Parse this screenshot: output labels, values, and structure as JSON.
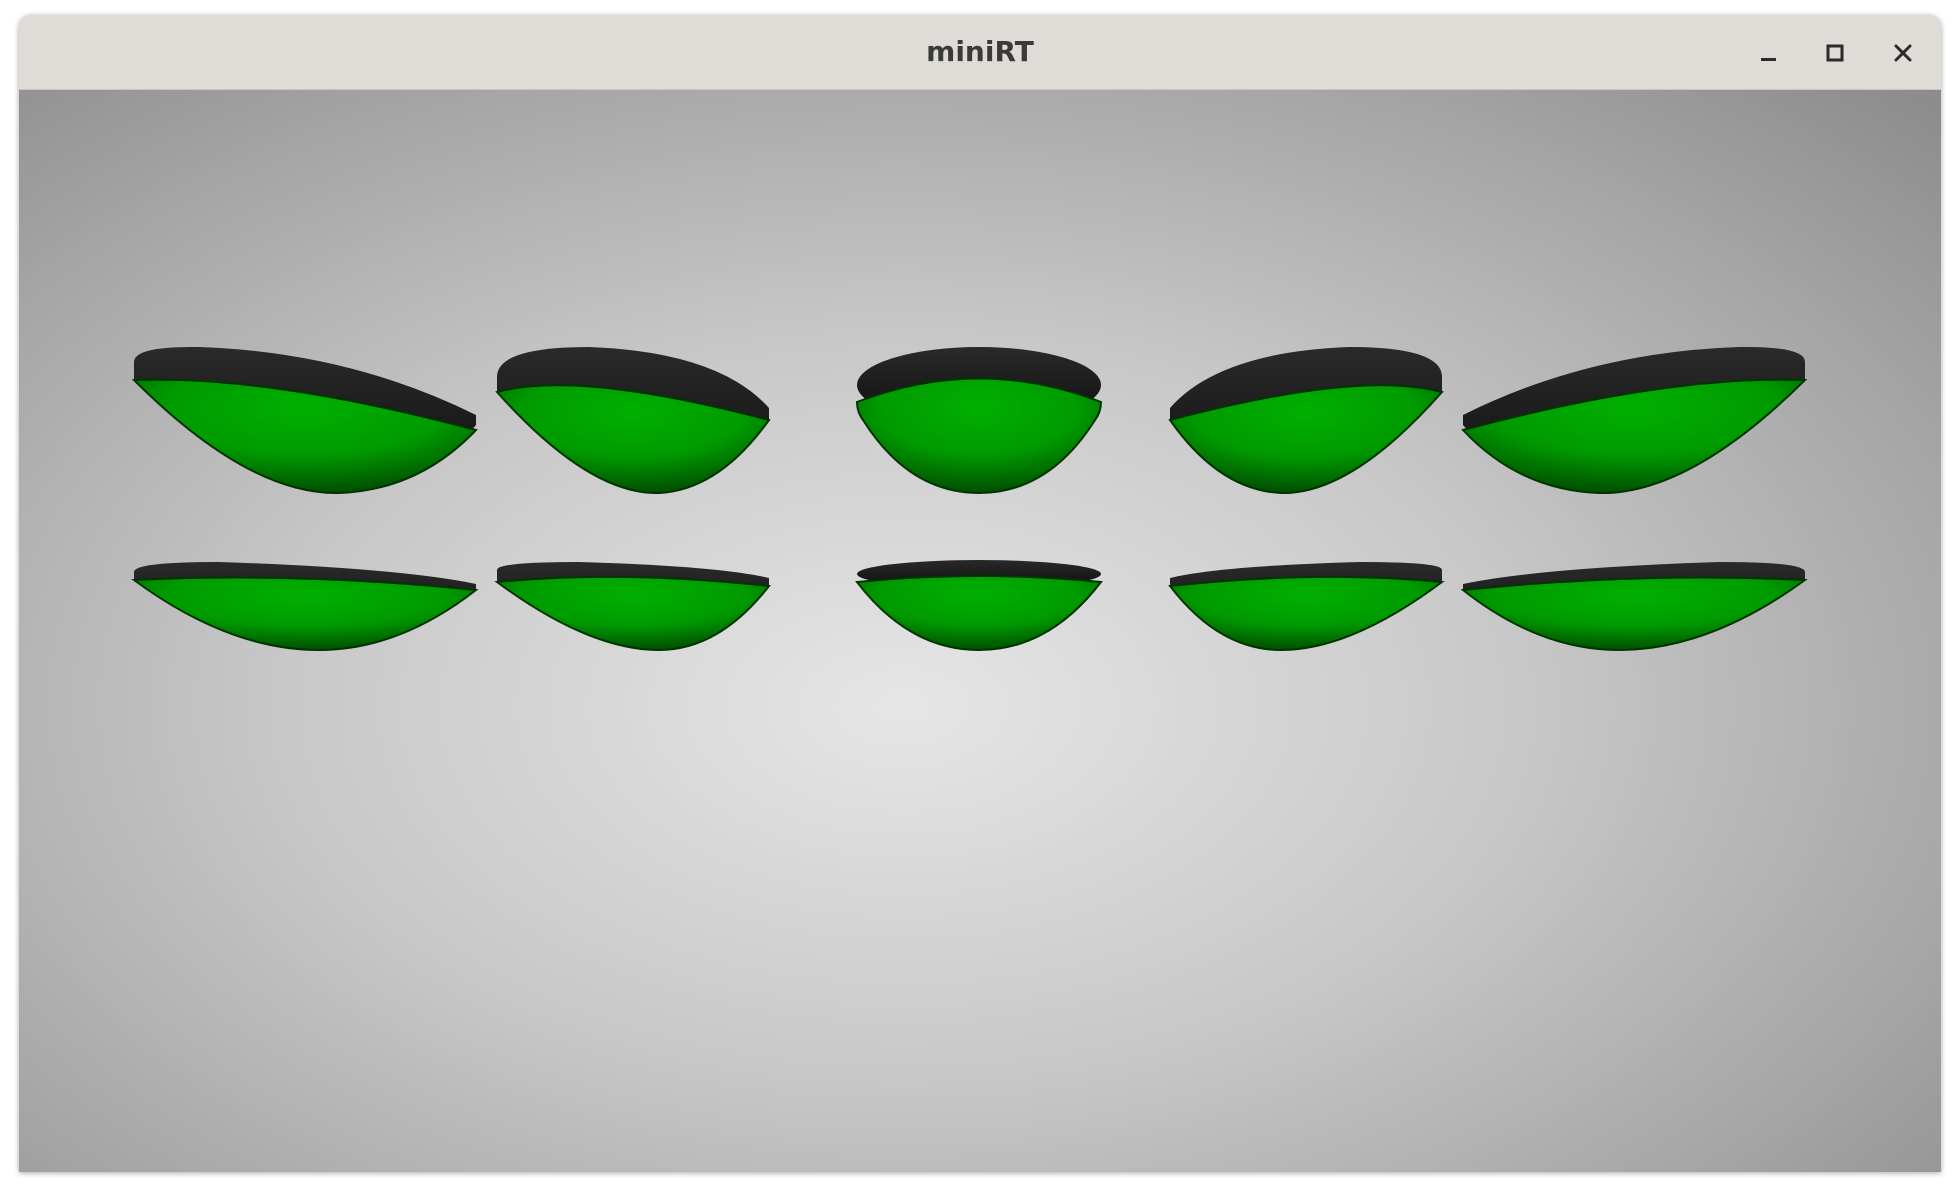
{
  "window": {
    "title": "miniRT",
    "buttons": {
      "minimize_icon": "minimize-icon",
      "maximize_icon": "maximize-icon",
      "close_icon": "close-icon"
    }
  },
  "scene": {
    "object_color": "#00a800",
    "rim_color": "#1a1a1a",
    "background_center": "#e6e6e6",
    "background_edge": "#858585",
    "rows": 2,
    "columns": 5,
    "object_type": "paraboloid"
  }
}
